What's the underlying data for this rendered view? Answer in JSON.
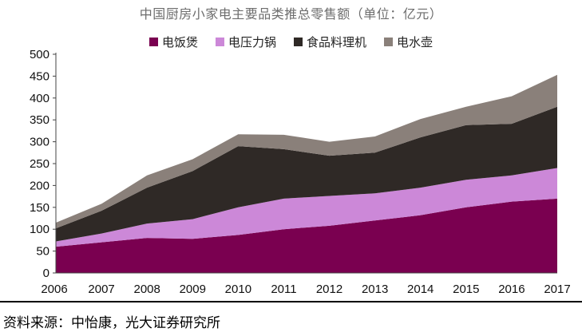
{
  "chart_data": {
    "type": "area",
    "stacked": true,
    "title": "中国厨房小家电主要品类推总零售额（单位：亿元）",
    "x": [
      "2006",
      "2007",
      "2008",
      "2009",
      "2010",
      "2011",
      "2012",
      "2013",
      "2014",
      "2015",
      "2016",
      "2017"
    ],
    "ylim": [
      0,
      500
    ],
    "yticks": [
      0,
      50,
      100,
      150,
      200,
      250,
      300,
      350,
      400,
      450,
      500
    ],
    "grid": false,
    "legend_position": "top",
    "series": [
      {
        "name": "电饭煲",
        "color": "#7a0050",
        "values": [
          60,
          70,
          80,
          78,
          87,
          100,
          108,
          120,
          132,
          150,
          163,
          170
        ]
      },
      {
        "name": "电压力锅",
        "color": "#cc88d8",
        "values": [
          12,
          20,
          33,
          45,
          63,
          70,
          68,
          62,
          63,
          63,
          60,
          70
        ]
      },
      {
        "name": "食品料理机",
        "color": "#2f2926",
        "values": [
          30,
          52,
          82,
          110,
          140,
          113,
          92,
          93,
          115,
          125,
          118,
          140
        ]
      },
      {
        "name": "电水壶",
        "color": "#8a807a",
        "values": [
          13,
          16,
          28,
          27,
          27,
          33,
          32,
          37,
          42,
          42,
          63,
          73
        ]
      }
    ]
  },
  "source_note": "资料来源：中怡康，光大证券研究所"
}
